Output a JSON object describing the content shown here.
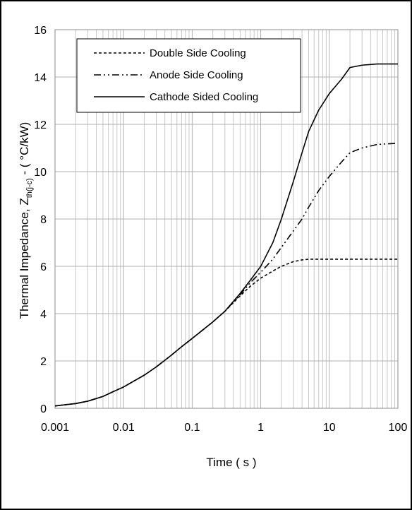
{
  "chart_data": {
    "type": "line",
    "title": "",
    "xlabel": "Time ( s )",
    "ylabel": {
      "main": "Thermal Impedance, Z",
      "subscript": "th(j-c)",
      "suffix": " - ( °C/kW)"
    },
    "x_scale": "log",
    "xlim": [
      0.001,
      100
    ],
    "ylim": [
      0,
      16
    ],
    "x_ticks": [
      "0.001",
      "0.01",
      "0.1",
      "1",
      "10",
      "100"
    ],
    "y_ticks": [
      "0",
      "2",
      "4",
      "6",
      "8",
      "10",
      "12",
      "14",
      "16"
    ],
    "grid": true,
    "legend_position": "top-right",
    "series": [
      {
        "name": "Double Side Cooling",
        "line_style": "dashed",
        "x": [
          0.001,
          0.002,
          0.003,
          0.005,
          0.007,
          0.01,
          0.02,
          0.03,
          0.05,
          0.07,
          0.1,
          0.2,
          0.3,
          0.5,
          0.7,
          1,
          1.5,
          2,
          3,
          4,
          5,
          7,
          10,
          20,
          50,
          100
        ],
        "y": [
          0.1,
          0.2,
          0.3,
          0.5,
          0.7,
          0.9,
          1.4,
          1.75,
          2.25,
          2.6,
          2.95,
          3.65,
          4.1,
          4.75,
          5.15,
          5.5,
          5.8,
          6.0,
          6.2,
          6.27,
          6.3,
          6.3,
          6.3,
          6.3,
          6.3,
          6.3
        ]
      },
      {
        "name": "Anode Side Cooling",
        "line_style": "dash-dot-dot",
        "x": [
          0.001,
          0.002,
          0.003,
          0.005,
          0.007,
          0.01,
          0.02,
          0.03,
          0.05,
          0.07,
          0.1,
          0.2,
          0.3,
          0.5,
          0.7,
          1,
          1.5,
          2,
          3,
          4,
          5,
          7,
          10,
          15,
          20,
          30,
          50,
          100
        ],
        "y": [
          0.1,
          0.2,
          0.3,
          0.5,
          0.7,
          0.9,
          1.4,
          1.75,
          2.25,
          2.6,
          2.95,
          3.65,
          4.1,
          4.8,
          5.3,
          5.75,
          6.3,
          6.8,
          7.5,
          8.0,
          8.5,
          9.2,
          9.8,
          10.4,
          10.8,
          11.0,
          11.15,
          11.2
        ]
      },
      {
        "name": "Cathode Sided Cooling",
        "line_style": "solid",
        "x": [
          0.001,
          0.002,
          0.003,
          0.005,
          0.007,
          0.01,
          0.02,
          0.03,
          0.05,
          0.07,
          0.1,
          0.2,
          0.3,
          0.5,
          0.7,
          1,
          1.5,
          2,
          3,
          4,
          5,
          7,
          10,
          15,
          20,
          30,
          50,
          100
        ],
        "y": [
          0.1,
          0.2,
          0.3,
          0.5,
          0.7,
          0.9,
          1.4,
          1.75,
          2.25,
          2.6,
          2.95,
          3.65,
          4.1,
          4.85,
          5.4,
          6.0,
          7.0,
          8.0,
          9.6,
          10.8,
          11.7,
          12.6,
          13.3,
          13.9,
          14.4,
          14.5,
          14.55,
          14.55
        ]
      }
    ]
  }
}
